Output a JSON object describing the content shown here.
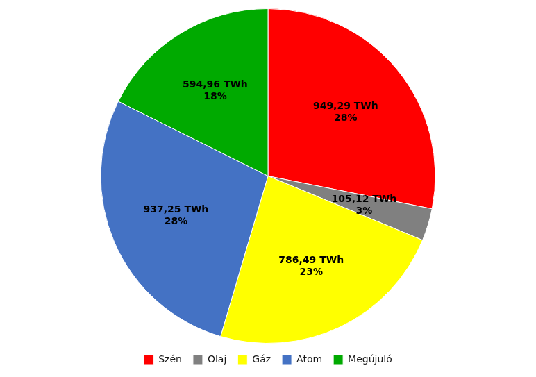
{
  "chart_data": {
    "type": "pie",
    "categories": [
      "Szén",
      "Olaj",
      "Gáz",
      "Atom",
      "Megújuló"
    ],
    "values": [
      949.29,
      105.12,
      786.49,
      937.25,
      594.96
    ],
    "value_labels": [
      "949,29 TWh\n28%",
      "105,12 TWh\n3%",
      "786,49 TWh\n23%",
      "937,25 TWh\n28%",
      "594,96 TWh\n18%"
    ],
    "colors": [
      "#FF0000",
      "#808080",
      "#FFFF00",
      "#4472C4",
      "#00AA00"
    ],
    "data_labels": true,
    "legend": "bottom"
  }
}
